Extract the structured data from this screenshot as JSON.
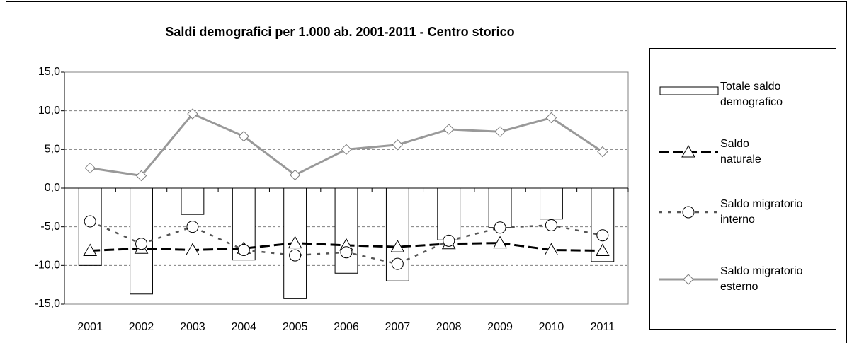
{
  "chart_data": {
    "type": "combo",
    "title": "Saldi demografici per 1.000 ab. 2001-2011 - Centro storico",
    "categories": [
      "2001",
      "2002",
      "2003",
      "2004",
      "2005",
      "2006",
      "2007",
      "2008",
      "2009",
      "2010",
      "2011"
    ],
    "ylim": [
      -15,
      15
    ],
    "yticks": [
      {
        "value": -15,
        "label": "-15,0"
      },
      {
        "value": -10,
        "label": "-10,0"
      },
      {
        "value": -5,
        "label": "-5,0"
      },
      {
        "value": 0,
        "label": "0,0"
      },
      {
        "value": 5,
        "label": "5,0"
      },
      {
        "value": 10,
        "label": "10,0"
      },
      {
        "value": 15,
        "label": "15,0"
      }
    ],
    "grid": true,
    "legend": "right",
    "series": [
      {
        "name": "Totale saldo\ndemografico",
        "type": "bar",
        "color": "#ffffff",
        "values": [
          -10.0,
          -13.7,
          -3.4,
          -9.3,
          -14.3,
          -11.0,
          -12.0,
          -6.7,
          -5.1,
          -4.0,
          -9.5
        ]
      },
      {
        "name": "Saldo\nnaturale",
        "type": "line",
        "color": "#000000",
        "marker": "triangle",
        "dash": "14 6",
        "width": 3,
        "values": [
          -8.1,
          -7.8,
          -8.0,
          -7.8,
          -7.1,
          -7.4,
          -7.6,
          -7.2,
          -7.1,
          -8.0,
          -8.1
        ]
      },
      {
        "name": "Saldo migratorio\ninterno",
        "type": "line",
        "color": "#555555",
        "marker": "circle",
        "dash": "5 8",
        "width": 2.5,
        "values": [
          -4.3,
          -7.2,
          -5.0,
          -8.0,
          -8.7,
          -8.3,
          -9.8,
          -6.8,
          -5.1,
          -4.8,
          -6.1
        ]
      },
      {
        "name": "Saldo migratorio\nesterno",
        "type": "line",
        "color": "#999999",
        "marker": "diamond",
        "dash": "",
        "width": 3,
        "values": [
          2.6,
          1.6,
          9.6,
          6.7,
          1.7,
          5.0,
          5.6,
          7.6,
          7.3,
          9.1,
          4.7
        ]
      }
    ]
  }
}
